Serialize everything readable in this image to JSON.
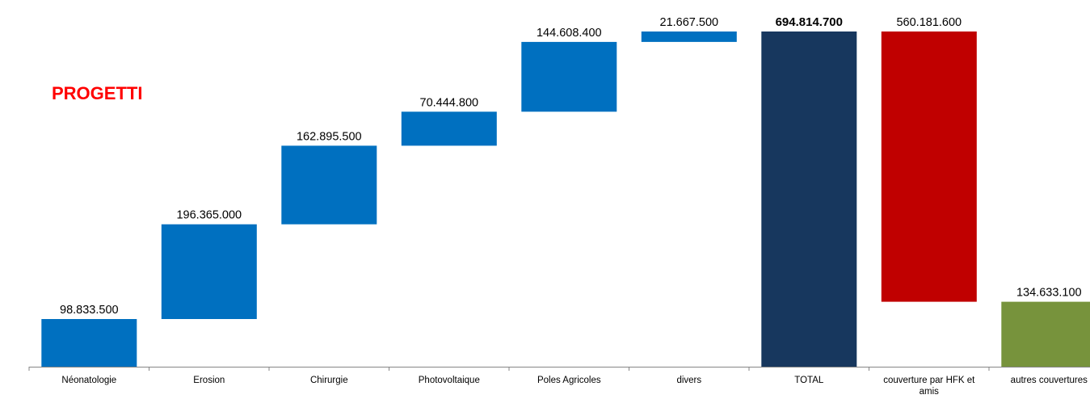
{
  "chart_data": {
    "type": "bar",
    "subtype": "waterfall",
    "title": "PROGETTI",
    "categories": [
      "Néonatologie",
      "Erosion",
      "Chirurgie",
      "Photovoltaique",
      "Poles Agricoles",
      "divers",
      "TOTAL",
      "couverture par HFK et amis",
      "autres couvertures"
    ],
    "values": [
      98833500,
      196365000,
      162895500,
      70444800,
      144608400,
      21667500,
      694814700,
      560181600,
      134633100
    ],
    "value_labels": [
      "98.833.500",
      "196.365.000",
      "162.895.500",
      "70.444.800",
      "144.608.400",
      "21.667.500",
      "694.814.700",
      "560.181.600",
      "134.633.100"
    ],
    "bar_kind": [
      "increase",
      "increase",
      "increase",
      "increase",
      "increase",
      "increase",
      "total",
      "decrease",
      "total"
    ],
    "colors": {
      "increase": "#0070c0",
      "total": "#17375e",
      "decrease": "#c00000",
      "remaining": "#77933c",
      "title": "#ff0000"
    },
    "bar_colors": [
      "#0070c0",
      "#0070c0",
      "#0070c0",
      "#0070c0",
      "#0070c0",
      "#0070c0",
      "#17375e",
      "#c00000",
      "#77933c"
    ],
    "ylim": [
      0,
      730000000
    ],
    "grid": false,
    "legend": "none",
    "xlabel": "",
    "ylabel": ""
  }
}
